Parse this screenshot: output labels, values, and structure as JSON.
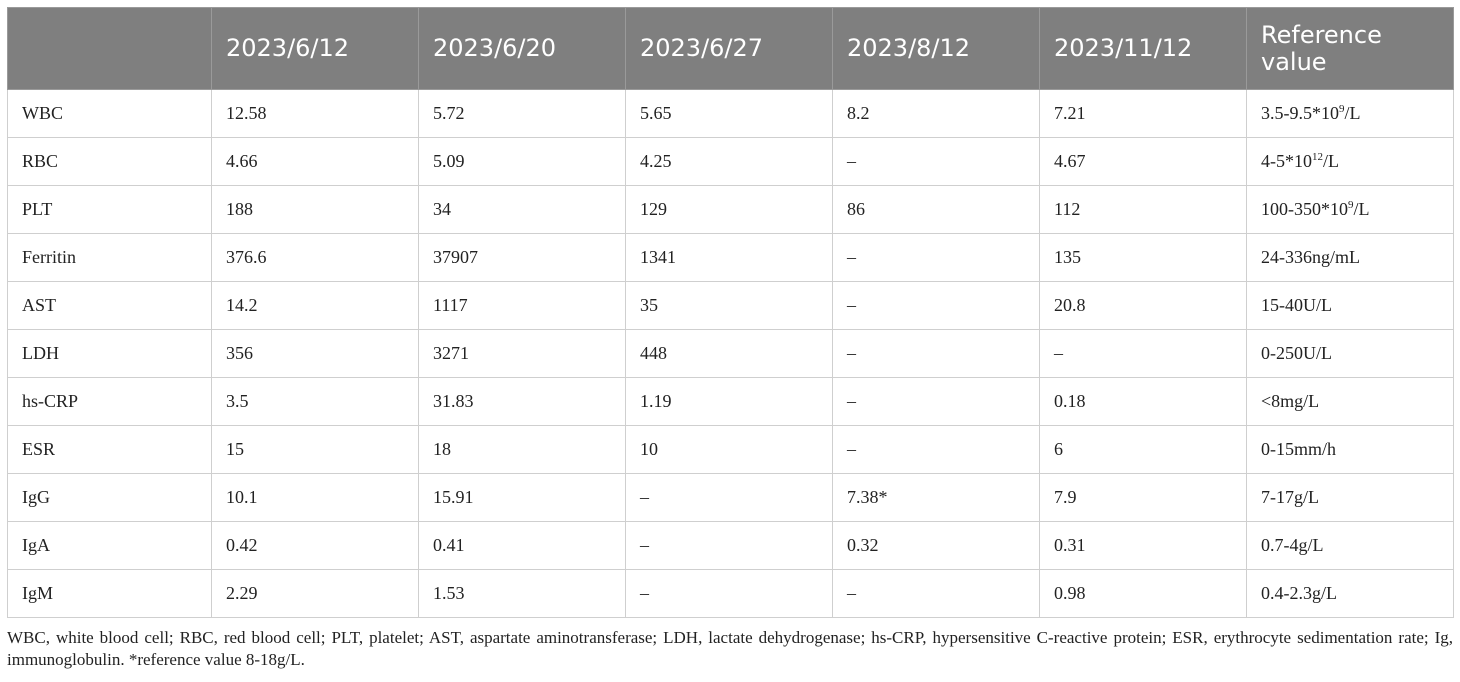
{
  "table": {
    "headers": [
      "",
      "2023/6/12",
      "2023/6/20",
      "2023/6/27",
      "2023/8/12",
      "2023/11/12",
      "Reference value"
    ],
    "rows": [
      {
        "label": "WBC",
        "values": [
          "12.58",
          "5.72",
          "5.65",
          "8.2",
          "7.21"
        ],
        "ref": {
          "pre": "3.5-9.5*10",
          "sup": "9",
          "post": "/L"
        }
      },
      {
        "label": "RBC",
        "values": [
          "4.66",
          "5.09",
          "4.25",
          "–",
          "4.67"
        ],
        "ref": {
          "pre": "4-5*10",
          "sup": "12",
          "post": "/L"
        }
      },
      {
        "label": "PLT",
        "values": [
          "188",
          "34",
          "129",
          "86",
          "112"
        ],
        "ref": {
          "pre": "100-350*10",
          "sup": "9",
          "post": "/L"
        }
      },
      {
        "label": "Ferritin",
        "values": [
          "376.6",
          "37907",
          "1341",
          "–",
          "135"
        ],
        "ref": {
          "pre": "24-336ng/mL",
          "sup": "",
          "post": ""
        }
      },
      {
        "label": "AST",
        "values": [
          "14.2",
          "1117",
          "35",
          "–",
          "20.8"
        ],
        "ref": {
          "pre": "15-40U/L",
          "sup": "",
          "post": ""
        }
      },
      {
        "label": "LDH",
        "values": [
          "356",
          "3271",
          "448",
          "–",
          "–"
        ],
        "ref": {
          "pre": "0-250U/L",
          "sup": "",
          "post": ""
        }
      },
      {
        "label": "hs-CRP",
        "values": [
          "3.5",
          "31.83",
          "1.19",
          "–",
          "0.18"
        ],
        "ref": {
          "pre": "<8mg/L",
          "sup": "",
          "post": ""
        }
      },
      {
        "label": "ESR",
        "values": [
          "15",
          "18",
          "10",
          "–",
          "6"
        ],
        "ref": {
          "pre": "0-15mm/h",
          "sup": "",
          "post": ""
        }
      },
      {
        "label": "IgG",
        "values": [
          "10.1",
          "15.91",
          "–",
          "7.38*",
          "7.9"
        ],
        "ref": {
          "pre": "7-17g/L",
          "sup": "",
          "post": ""
        }
      },
      {
        "label": "IgA",
        "values": [
          "0.42",
          "0.41",
          "–",
          "0.32",
          "0.31"
        ],
        "ref": {
          "pre": "0.7-4g/L",
          "sup": "",
          "post": ""
        }
      },
      {
        "label": "IgM",
        "values": [
          "2.29",
          "1.53",
          "–",
          "–",
          "0.98"
        ],
        "ref": {
          "pre": "0.4-2.3g/L",
          "sup": "",
          "post": ""
        }
      }
    ]
  },
  "footnote": "WBC, white blood cell; RBC, red blood cell; PLT, platelet; AST, aspartate aminotransferase; LDH, lactate dehydrogenase; hs-CRP, hypersensitive C-reactive protein; ESR, erythrocyte sedimentation rate; Ig, immunoglobulin. *reference value 8-18g/L.",
  "colors": {
    "header_bg": "#7f7f7f",
    "header_text": "#ffffff",
    "grid": "#cfcfcf"
  }
}
